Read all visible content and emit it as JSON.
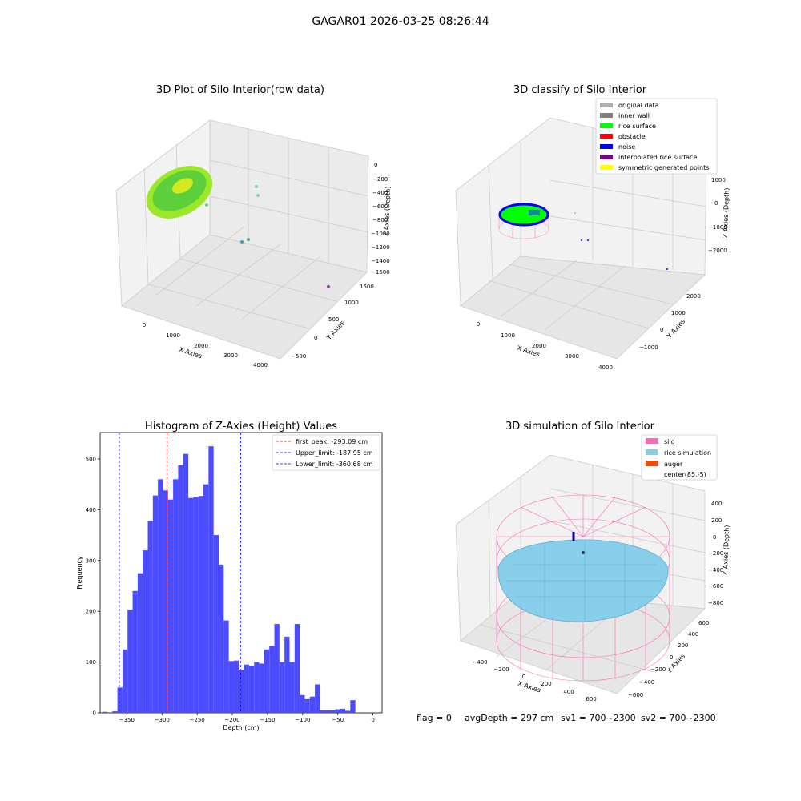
{
  "suptitle": "GAGAR01 2026-03-25 08:26:44",
  "colors": {
    "hist_bar": "#4b4bff",
    "peak_line": "#ff0000",
    "limit_line": "#0000ff",
    "silo": "#ff69b4",
    "rice_sim": "#87ceeb",
    "auger": "#ff4500",
    "rice_surface": "#00ff00"
  },
  "panels": {
    "raw": {
      "title": "3D Plot of Silo Interior(row data)",
      "xlabel": "X Axies",
      "ylabel": "Y Axies",
      "zlabel": "Z Axies (Depth)",
      "xticks": [
        "0",
        "1000",
        "2000",
        "3000",
        "4000"
      ],
      "yticks": [
        "1500",
        "1000",
        "500",
        "0",
        "−500"
      ],
      "zticks": [
        "0",
        "−200",
        "−400",
        "−600",
        "−800",
        "−1000",
        "−1200",
        "−1400",
        "−1600"
      ]
    },
    "classify": {
      "title": "3D classify of Silo Interior",
      "xlabel": "X Axies",
      "ylabel": "Y Axies",
      "zlabel": "Z Axies (Depth)",
      "xticks": [
        "0",
        "1000",
        "2000",
        "3000",
        "4000"
      ],
      "yticks": [
        "2000",
        "1000",
        "0",
        "−1000"
      ],
      "zticks": [
        "1000",
        "0",
        "−1000",
        "−2000"
      ],
      "legend": [
        {
          "label": "original data",
          "color": "#b0b0b0"
        },
        {
          "label": "inner wall",
          "color": "#808080"
        },
        {
          "label": "rice surface",
          "color": "#00ff00"
        },
        {
          "label": "obstacle",
          "color": "#ff0000"
        },
        {
          "label": "noise",
          "color": "#0000ff"
        },
        {
          "label": "interpolated rice surface",
          "color": "#800080"
        },
        {
          "label": "symmetric generated points",
          "color": "#ffff00"
        }
      ]
    },
    "simulation": {
      "title": "3D simulation of Silo Interior",
      "xlabel": "X Axies",
      "ylabel": "Y Axies",
      "zlabel": "Z Axies (Depth)",
      "xticks": [
        "−400",
        "−200",
        "0",
        "200",
        "400",
        "600"
      ],
      "yticks": [
        "600",
        "400",
        "200",
        "0",
        "−200",
        "−400",
        "−600"
      ],
      "zticks": [
        "400",
        "200",
        "0",
        "−200",
        "−400",
        "−600",
        "−800"
      ],
      "legend": [
        {
          "label": "silo",
          "color": "#ff69b4"
        },
        {
          "label": "rice simulation",
          "color": "#87ceeb"
        },
        {
          "label": "auger",
          "color": "#ff4500"
        },
        {
          "label": "center(85,-5)",
          "color": "#ffffff"
        }
      ]
    }
  },
  "status": {
    "flag": "flag = 0",
    "avg": "avgDepth = 297 cm",
    "sv1": "sv1 = 700~2300",
    "sv2": "sv2 = 700~2300"
  },
  "chart_data": {
    "type": "bar",
    "title": "Histogram of Z-Axies (Height) Values",
    "xlabel": "Depth (cm)",
    "ylabel": "Frequency",
    "xlim": [
      -388,
      13
    ],
    "ylim": [
      0,
      552
    ],
    "xticks": [
      -350,
      -300,
      -250,
      -200,
      -150,
      -100,
      -50,
      0
    ],
    "yticks": [
      0,
      100,
      200,
      300,
      400,
      500
    ],
    "bin_start": -385,
    "bin_width": 7.2,
    "values": [
      2,
      0,
      3,
      50,
      125,
      203,
      240,
      275,
      320,
      378,
      428,
      460,
      438,
      420,
      460,
      488,
      510,
      423,
      425,
      427,
      450,
      525,
      350,
      292,
      182,
      102,
      103,
      85,
      95,
      92,
      100,
      97,
      125,
      132,
      175,
      100,
      150,
      100,
      175,
      35,
      27,
      32,
      56,
      5,
      5,
      5,
      7,
      8,
      4,
      25
    ],
    "lines": [
      {
        "label": "first_peak: -293.09 cm",
        "x": -293.09,
        "color": "#ff0000"
      },
      {
        "label": "Upper_limit: -187.95 cm",
        "x": -187.95,
        "color": "#0000ff"
      },
      {
        "label": "Lower_limit: -360.68 cm",
        "x": -360.68,
        "color": "#0000ff"
      }
    ]
  }
}
